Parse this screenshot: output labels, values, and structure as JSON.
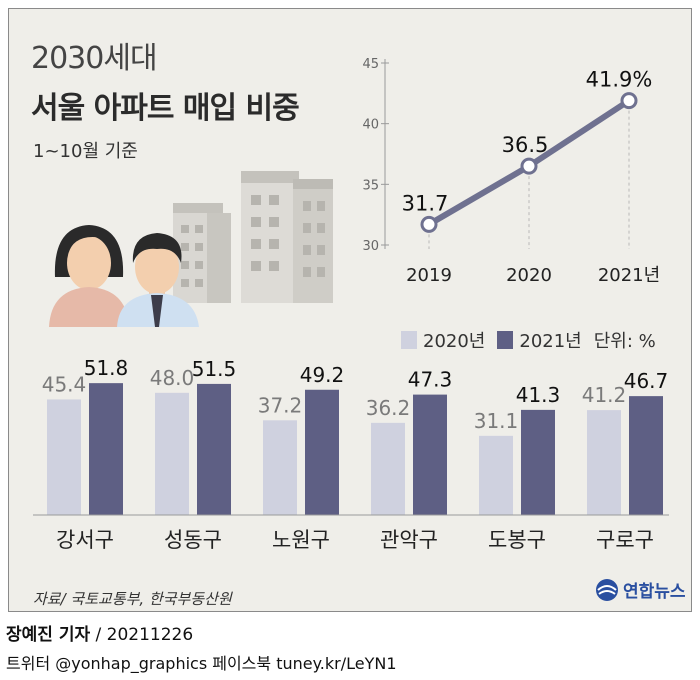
{
  "header": {
    "title_top": "2030세대",
    "title_main": "서울 아파트 매입 비중",
    "subtitle": "1~10월 기준"
  },
  "legend": {
    "series1": "2020년",
    "series2": "2021년",
    "unit": "단위: %"
  },
  "source": "자료/ 국토교통부, 한국부동산원",
  "logo_text": "연합뉴스",
  "credit": {
    "reporter": "장예진 기자",
    "date": "/ 20211226",
    "social": "트위터 @yonhap_graphics  페이스북 tuney.kr/LeYN1"
  },
  "colors": {
    "panel_bg": "#efeee9",
    "bar_2020": "#cfd1df",
    "bar_2021": "#5e5f84",
    "line": "#6f7190",
    "value_2020": "#7a7a7a",
    "value_2021": "#111111"
  },
  "chart_data": [
    {
      "type": "line",
      "x": [
        "2019",
        "2020",
        "2021년"
      ],
      "values": [
        31.7,
        36.5,
        41.9
      ],
      "value_labels": [
        "31.7",
        "36.5",
        "41.9%"
      ],
      "yticks": [
        30,
        35,
        40,
        45
      ],
      "ylim": [
        30,
        45
      ],
      "grid": false
    },
    {
      "type": "bar",
      "categories": [
        "강서구",
        "성동구",
        "노원구",
        "관악구",
        "도봉구",
        "구로구"
      ],
      "series": [
        {
          "name": "2020년",
          "values": [
            45.4,
            48.0,
            37.2,
            36.2,
            31.1,
            41.2
          ],
          "labels": [
            "45.4",
            "48.0",
            "37.2",
            "36.2",
            "31.1",
            "41.2"
          ]
        },
        {
          "name": "2021년",
          "values": [
            51.8,
            51.5,
            49.2,
            47.3,
            41.3,
            46.7
          ],
          "labels": [
            "51.8",
            "51.5",
            "49.2",
            "47.3",
            "41.3",
            "46.7"
          ]
        }
      ],
      "unit": "%",
      "legend": "top-right",
      "grid": false
    }
  ]
}
